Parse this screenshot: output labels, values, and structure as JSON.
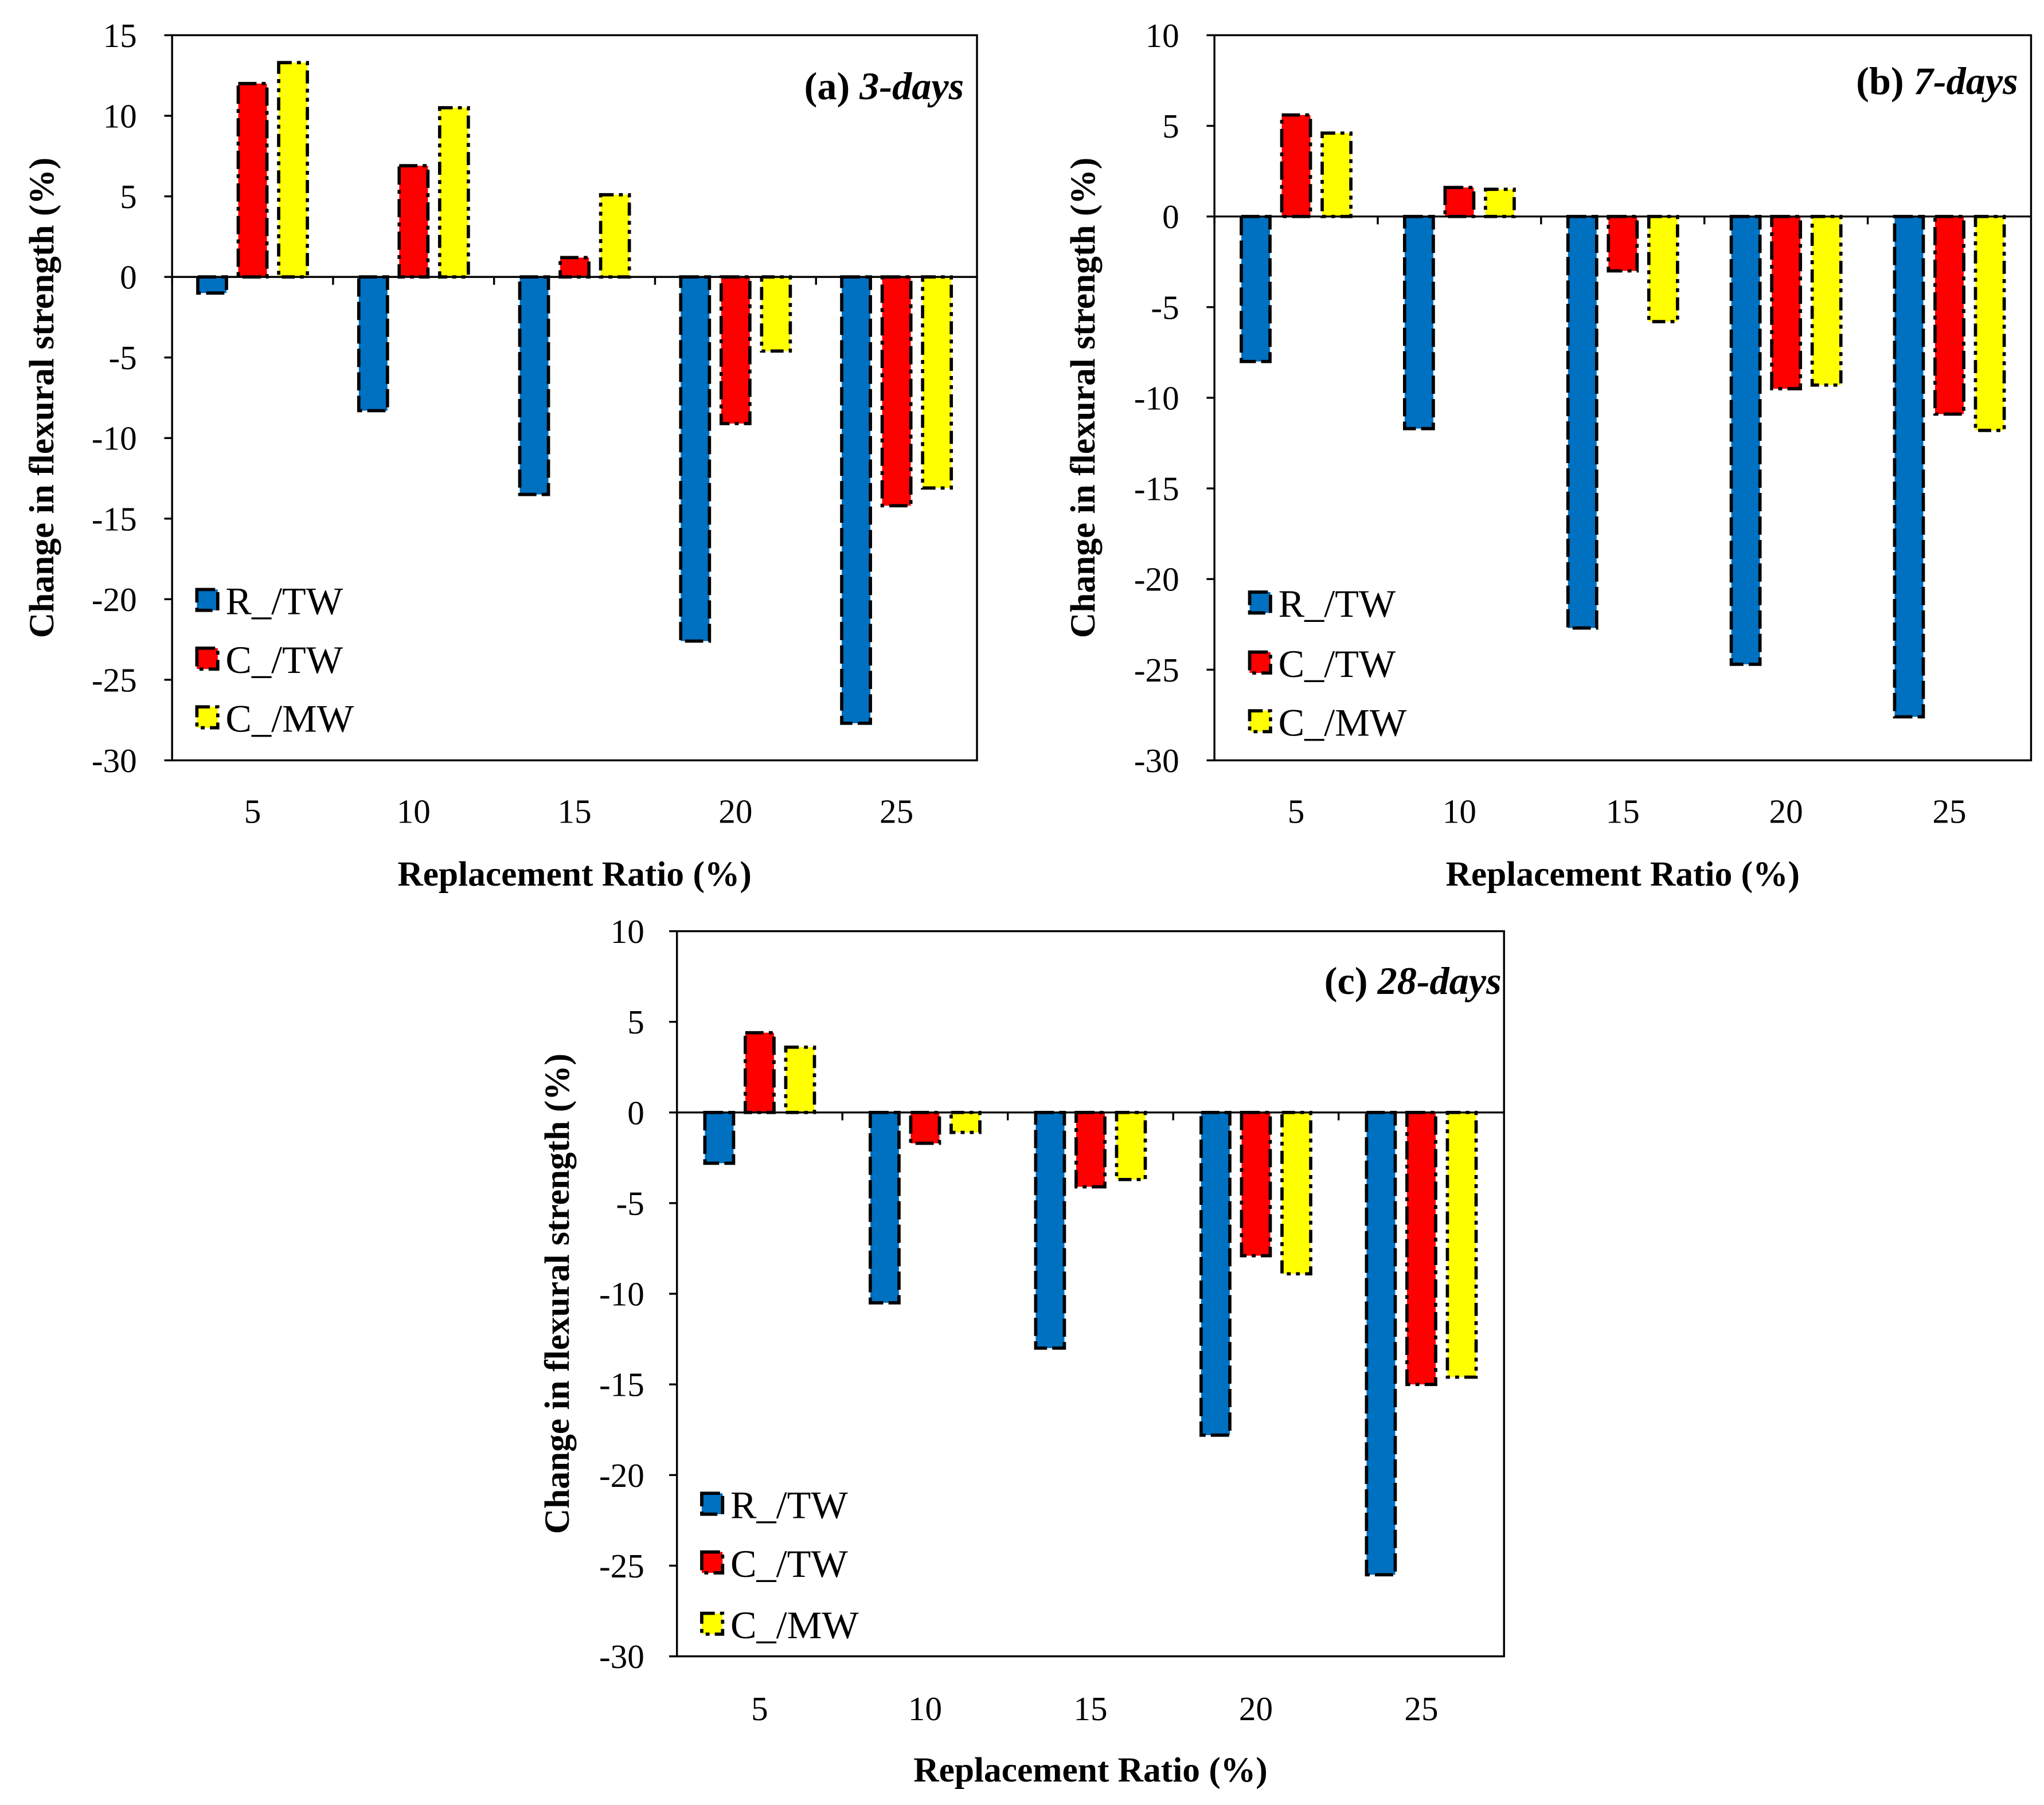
{
  "chart_data": [
    {
      "type": "bar",
      "title_prefix": "(a)",
      "title_italic": "3-days",
      "xlabel": "Replacement Ratio (%)",
      "ylabel": "Change in flexural strength (%)",
      "categories": [
        "5",
        "10",
        "15",
        "20",
        "25"
      ],
      "ylim": [
        -30,
        15
      ],
      "yticks": [
        15,
        10,
        5,
        0,
        -5,
        -10,
        -15,
        -20,
        -25,
        -30
      ],
      "legend_position": "bottom-left",
      "series": [
        {
          "name": "R_/TW",
          "color": "#0070C0",
          "values": [
            -1.0,
            -8.3,
            -13.5,
            -22.6,
            -27.7
          ]
        },
        {
          "name": "C_/TW",
          "color": "#FF0000",
          "values": [
            12.0,
            6.9,
            1.2,
            -9.1,
            -14.2
          ]
        },
        {
          "name": "C_/MW",
          "color": "#FFFF00",
          "values": [
            13.3,
            10.5,
            5.1,
            -4.6,
            -13.1
          ]
        }
      ]
    },
    {
      "type": "bar",
      "title_prefix": "(b)",
      "title_italic": "7-days",
      "xlabel": "Replacement Ratio (%)",
      "ylabel": "Change in flexural strength (%)",
      "categories": [
        "5",
        "10",
        "15",
        "20",
        "25"
      ],
      "ylim": [
        -30,
        10
      ],
      "yticks": [
        10,
        5,
        0,
        -5,
        -10,
        -15,
        -20,
        -25,
        -30
      ],
      "legend_position": "bottom-left",
      "series": [
        {
          "name": "R_/TW",
          "color": "#0070C0",
          "values": [
            -8.0,
            -11.7,
            -22.7,
            -24.7,
            -27.6
          ]
        },
        {
          "name": "C_/TW",
          "color": "#FF0000",
          "values": [
            5.6,
            1.6,
            -3.0,
            -9.5,
            -10.9
          ]
        },
        {
          "name": "C_/MW",
          "color": "#FFFF00",
          "values": [
            4.6,
            1.5,
            -5.8,
            -9.3,
            -11.8
          ]
        }
      ]
    },
    {
      "type": "bar",
      "title_prefix": "(c)",
      "title_italic": "28-days",
      "xlabel": "Replacement Ratio (%)",
      "ylabel": "Change in flexural strength (%)",
      "categories": [
        "5",
        "10",
        "15",
        "20",
        "25"
      ],
      "ylim": [
        -30,
        10
      ],
      "yticks": [
        10,
        5,
        0,
        -5,
        -10,
        -15,
        -20,
        -25,
        -30
      ],
      "legend_position": "bottom-left",
      "series": [
        {
          "name": "R_/TW",
          "color": "#0070C0",
          "values": [
            -2.8,
            -10.5,
            -13.0,
            -17.8,
            -25.5
          ]
        },
        {
          "name": "C_/TW",
          "color": "#FF0000",
          "values": [
            4.4,
            -1.7,
            -4.1,
            -7.9,
            -15.0
          ]
        },
        {
          "name": "C_/MW",
          "color": "#FFFF00",
          "values": [
            3.6,
            -1.1,
            -3.7,
            -8.9,
            -14.6
          ]
        }
      ]
    }
  ]
}
